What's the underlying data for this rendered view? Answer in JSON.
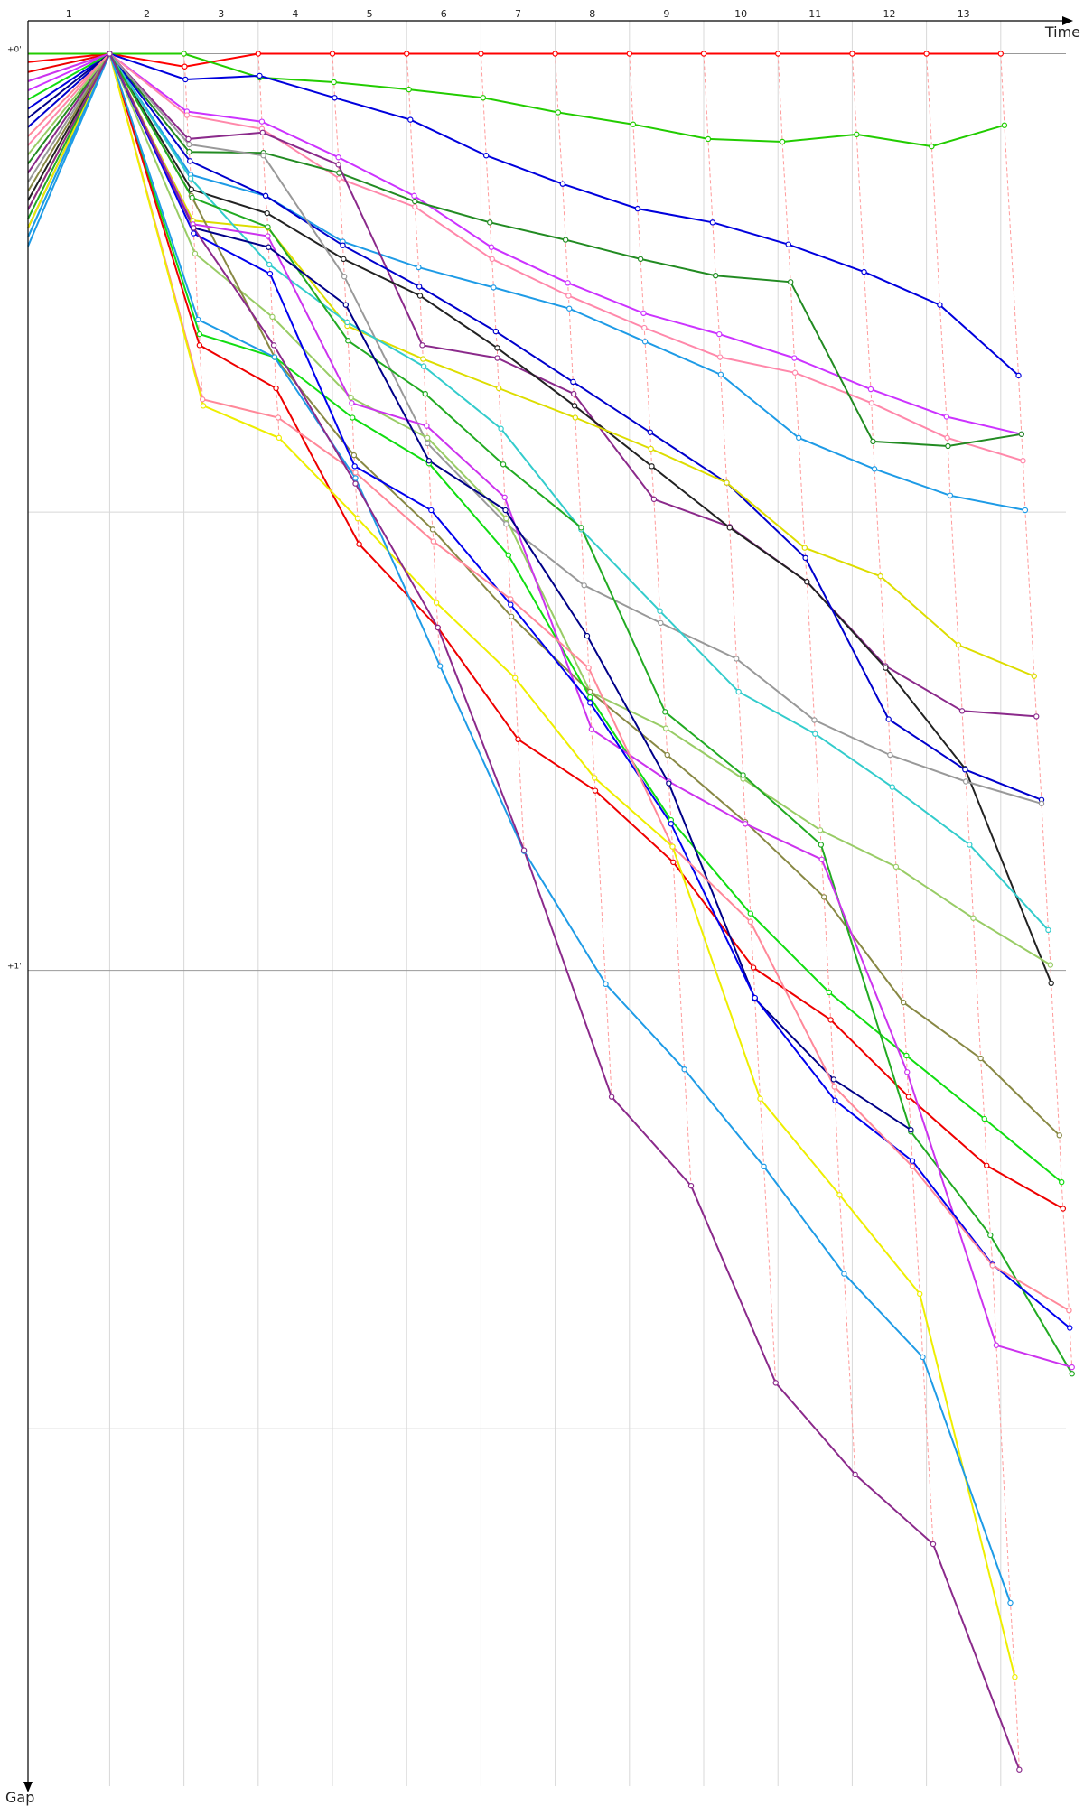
{
  "chart_data": {
    "type": "line",
    "x_label": "Time",
    "y_label": "Gap",
    "laps": [
      "1",
      "2",
      "3",
      "4",
      "5",
      "6",
      "7",
      "8",
      "9",
      "10",
      "11",
      "12",
      "13"
    ],
    "xlim": [
      -0.1,
      14
    ],
    "ylim": [
      -0.036,
      1.89
    ],
    "x_gridlines": [
      1,
      2,
      3,
      4,
      5,
      6,
      7,
      8,
      9,
      10,
      11,
      12,
      13
    ],
    "yticks": [
      {
        "value": 0,
        "label": "+0'"
      },
      {
        "value": 1,
        "label": "+1'"
      }
    ],
    "y_gridlines": [
      0.5,
      1.5
    ],
    "lap_connectors": true,
    "series": [
      {
        "color": "#ff0000",
        "x": [
          -0.1,
          1,
          2.01,
          3,
          4,
          5,
          6,
          7,
          8,
          9,
          10,
          11,
          12,
          13
        ],
        "values": [
          0.009,
          0,
          0.014,
          0,
          0,
          0,
          0,
          0,
          0,
          0,
          0,
          0,
          0,
          0
        ]
      },
      {
        "color": "#22cc00",
        "x": [
          -0.1,
          1,
          2,
          3.02,
          4.02,
          5.03,
          6.03,
          7.04,
          8.05,
          9.06,
          10.06,
          11.06,
          12.07,
          13.05
        ],
        "values": [
          0,
          0,
          0,
          0.026,
          0.031,
          0.039,
          0.048,
          0.064,
          0.077,
          0.093,
          0.096,
          0.088,
          0.101,
          0.078
        ]
      },
      {
        "color": "#0000dd",
        "x": [
          -0.1,
          1,
          2.02,
          3.02,
          4.03,
          5.05,
          6.07,
          7.1,
          8.11,
          9.12,
          10.14,
          11.16,
          12.18,
          13.24
        ],
        "values": [
          0.06,
          0,
          0.028,
          0.024,
          0.048,
          0.072,
          0.111,
          0.142,
          0.169,
          0.184,
          0.208,
          0.238,
          0.274,
          0.351
        ]
      },
      {
        "color": "#cc33ff",
        "x": [
          -0.1,
          1,
          2.04,
          3.05,
          4.08,
          5.1,
          6.14,
          7.17,
          8.19,
          9.21,
          10.22,
          11.25,
          12.27,
          13.28
        ],
        "values": [
          0.04,
          0,
          0.063,
          0.074,
          0.113,
          0.155,
          0.211,
          0.25,
          0.283,
          0.306,
          0.332,
          0.366,
          0.396,
          0.415
        ]
      },
      {
        "color": "#ff88aa",
        "x": [
          -0.1,
          1,
          2.04,
          3.05,
          4.09,
          5.11,
          6.15,
          7.18,
          8.2,
          9.22,
          10.23,
          11.26,
          12.28,
          13.3
        ],
        "values": [
          0.1,
          0,
          0.067,
          0.082,
          0.136,
          0.167,
          0.224,
          0.264,
          0.299,
          0.331,
          0.348,
          0.381,
          0.419,
          0.444
        ]
      },
      {
        "color": "#228b22",
        "x": [
          -0.1,
          1,
          2.07,
          3.07,
          4.09,
          5.11,
          6.12,
          7.14,
          8.15,
          9.16,
          10.17,
          11.28,
          12.29,
          13.28
        ],
        "values": [
          0.12,
          0,
          0.107,
          0.108,
          0.13,
          0.161,
          0.184,
          0.203,
          0.224,
          0.242,
          0.249,
          0.423,
          0.428,
          0.415
        ]
      },
      {
        "color": "#1e9be6",
        "x": [
          -0.1,
          1,
          2.09,
          3.1,
          4.14,
          5.16,
          6.17,
          7.19,
          8.21,
          9.23,
          10.28,
          11.3,
          12.32,
          13.33
        ],
        "values": [
          0.21,
          0,
          0.132,
          0.155,
          0.205,
          0.233,
          0.255,
          0.278,
          0.314,
          0.35,
          0.419,
          0.453,
          0.482,
          0.498
        ]
      },
      {
        "color": "#8b2a8b",
        "x": [
          -0.1,
          1,
          2.06,
          3.06,
          4.08,
          5.21,
          6.22,
          7.25,
          8.33,
          9.35,
          10.39,
          11.45,
          12.48,
          13.48
        ],
        "values": [
          0.13,
          0,
          0.093,
          0.086,
          0.121,
          0.318,
          0.332,
          0.371,
          0.486,
          0.516,
          0.576,
          0.668,
          0.717,
          0.723
        ]
      },
      {
        "color": "#222222",
        "x": [
          -0.1,
          1,
          2.1,
          3.12,
          4.15,
          5.18,
          6.22,
          7.26,
          8.3,
          9.35,
          10.39,
          11.45,
          12.52,
          13.68
        ],
        "values": [
          0.16,
          0,
          0.148,
          0.174,
          0.224,
          0.264,
          0.321,
          0.384,
          0.45,
          0.517,
          0.576,
          0.67,
          0.78,
          1.014
        ]
      },
      {
        "color": "#0000cc",
        "x": [
          -0.1,
          1,
          2.08,
          3.1,
          4.14,
          5.17,
          6.2,
          7.24,
          8.28,
          9.31,
          10.37,
          11.49,
          12.52,
          13.55
        ],
        "values": [
          0.08,
          0,
          0.117,
          0.155,
          0.209,
          0.254,
          0.303,
          0.358,
          0.413,
          0.468,
          0.55,
          0.726,
          0.781,
          0.814
        ]
      },
      {
        "color": "#dddd00",
        "x": [
          -0.1,
          1,
          2.12,
          3.13,
          4.2,
          5.22,
          6.24,
          7.27,
          8.29,
          9.31,
          10.36,
          11.38,
          12.43,
          13.45
        ],
        "values": [
          0.17,
          0,
          0.182,
          0.19,
          0.297,
          0.333,
          0.365,
          0.397,
          0.431,
          0.468,
          0.539,
          0.57,
          0.645,
          0.679
        ]
      },
      {
        "color": "#999999",
        "x": [
          -0.1,
          1,
          2.07,
          3.07,
          4.16,
          5.28,
          6.34,
          7.39,
          8.42,
          9.44,
          10.49,
          11.51,
          12.53,
          13.55
        ],
        "values": [
          0.14,
          0,
          0.099,
          0.111,
          0.243,
          0.425,
          0.513,
          0.58,
          0.621,
          0.66,
          0.727,
          0.765,
          0.794,
          0.818
        ]
      },
      {
        "color": "#33cccc",
        "x": [
          -0.1,
          1,
          2.09,
          3.15,
          4.2,
          5.23,
          6.27,
          7.35,
          8.41,
          9.47,
          10.5,
          11.54,
          12.58,
          13.64
        ],
        "values": [
          0.2,
          0,
          0.136,
          0.23,
          0.293,
          0.341,
          0.409,
          0.519,
          0.608,
          0.696,
          0.742,
          0.8,
          0.863,
          0.956
        ]
      },
      {
        "color": "#99cc66",
        "x": [
          -0.1,
          1,
          2.15,
          3.19,
          4.25,
          5.28,
          6.34,
          7.47,
          8.49,
          9.53,
          10.57,
          11.59,
          12.63,
          13.67
        ],
        "values": [
          0.11,
          0,
          0.218,
          0.287,
          0.375,
          0.419,
          0.507,
          0.696,
          0.736,
          0.791,
          0.847,
          0.887,
          0.943,
          0.994
        ]
      },
      {
        "color": "#888844",
        "x": [
          -0.1,
          1,
          2.1,
          3.22,
          4.29,
          5.35,
          6.41,
          7.47,
          8.51,
          9.56,
          10.62,
          11.69,
          12.73,
          13.79
        ],
        "values": [
          0.15,
          0,
          0.155,
          0.331,
          0.438,
          0.519,
          0.614,
          0.696,
          0.765,
          0.838,
          0.92,
          1.035,
          1.096,
          1.18
        ]
      },
      {
        "color": "#11dd11",
        "x": [
          -0.1,
          1,
          2.21,
          3.22,
          4.27,
          5.3,
          6.37,
          7.47,
          8.56,
          9.63,
          10.69,
          11.73,
          12.78,
          13.82
        ],
        "values": [
          0.05,
          0,
          0.306,
          0.331,
          0.397,
          0.447,
          0.547,
          0.702,
          0.836,
          0.938,
          1.024,
          1.093,
          1.162,
          1.231
        ]
      },
      {
        "color": "#ee0000",
        "x": [
          -0.1,
          1,
          2.21,
          3.24,
          4.36,
          5.42,
          6.5,
          7.54,
          8.59,
          9.67,
          10.71,
          11.76,
          12.81,
          13.84
        ],
        "values": [
          0.02,
          0,
          0.318,
          0.365,
          0.535,
          0.626,
          0.748,
          0.804,
          0.882,
          0.997,
          1.054,
          1.138,
          1.213,
          1.26
        ]
      },
      {
        "color": "#22aa22",
        "x": [
          -0.1,
          1,
          2.11,
          3.13,
          4.21,
          5.25,
          6.3,
          7.35,
          8.48,
          9.53,
          10.58,
          11.79,
          12.86,
          13.96
        ],
        "values": [
          0.18,
          0,
          0.157,
          0.189,
          0.313,
          0.371,
          0.448,
          0.517,
          0.718,
          0.787,
          0.863,
          1.176,
          1.289,
          1.44
        ]
      },
      {
        "color": "#cc33ee",
        "x": [
          -0.1,
          1,
          2.12,
          3.13,
          4.26,
          5.27,
          6.32,
          7.49,
          8.53,
          9.56,
          10.59,
          11.74,
          12.94,
          13.96
        ],
        "values": [
          0.03,
          0,
          0.186,
          0.199,
          0.381,
          0.406,
          0.484,
          0.737,
          0.794,
          0.84,
          0.879,
          1.111,
          1.409,
          1.433
        ]
      },
      {
        "color": "#000088",
        "x": [
          -0.1,
          1,
          2.13,
          3.14,
          4.18,
          5.3,
          6.33,
          7.43,
          8.53,
          9.69,
          10.75,
          11.79,
          null,
          null
        ],
        "values": [
          0.07,
          0,
          0.19,
          0.211,
          0.274,
          0.444,
          0.498,
          0.635,
          0.796,
          1.031,
          1.119,
          1.174,
          null,
          null
        ]
      },
      {
        "color": "#0000ee",
        "x": [
          -0.1,
          1,
          2.13,
          3.16,
          4.3,
          5.33,
          6.4,
          7.47,
          8.56,
          9.69,
          10.77,
          11.81,
          12.89,
          13.93
        ],
        "values": [
          0.19,
          0,
          0.196,
          0.24,
          0.45,
          0.498,
          0.601,
          0.708,
          0.84,
          1.03,
          1.142,
          1.208,
          1.321,
          1.39
        ]
      },
      {
        "color": "#ff8899",
        "x": [
          -0.1,
          1,
          2.25,
          3.27,
          4.31,
          5.36,
          6.4,
          7.45,
          8.58,
          9.63,
          10.76,
          11.81,
          12.89,
          13.92
        ],
        "values": [
          0.09,
          0,
          0.377,
          0.397,
          0.457,
          0.532,
          0.595,
          0.67,
          0.865,
          0.947,
          1.127,
          1.214,
          1.322,
          1.371
        ]
      },
      {
        "color": "#eeee00",
        "x": [
          -0.1,
          1,
          2.26,
          3.28,
          4.34,
          5.4,
          6.46,
          7.53,
          8.58,
          9.76,
          10.83,
          11.91,
          13.19,
          null
        ],
        "values": [
          0.19,
          0,
          0.384,
          0.419,
          0.507,
          0.599,
          0.681,
          0.79,
          0.865,
          1.14,
          1.245,
          1.353,
          1.771,
          null
        ]
      },
      {
        "color": "#1e9be6",
        "x": [
          -0.1,
          1,
          2.19,
          3.22,
          4.31,
          5.45,
          6.58,
          7.68,
          8.74,
          9.81,
          10.89,
          11.95,
          13.13,
          null
        ],
        "values": [
          0.2,
          0,
          0.29,
          0.331,
          0.463,
          0.668,
          0.87,
          1.015,
          1.108,
          1.214,
          1.331,
          1.422,
          1.69,
          null
        ]
      },
      {
        "color": "#8b2a8b",
        "x": [
          -0.1,
          1,
          2.13,
          3.21,
          4.31,
          5.42,
          6.58,
          7.76,
          8.83,
          9.97,
          11.04,
          12.09,
          13.25,
          null
        ],
        "values": [
          0.17,
          0,
          0.19,
          0.318,
          0.469,
          0.626,
          0.869,
          1.138,
          1.235,
          1.45,
          1.55,
          1.626,
          1.872,
          null
        ]
      }
    ]
  }
}
